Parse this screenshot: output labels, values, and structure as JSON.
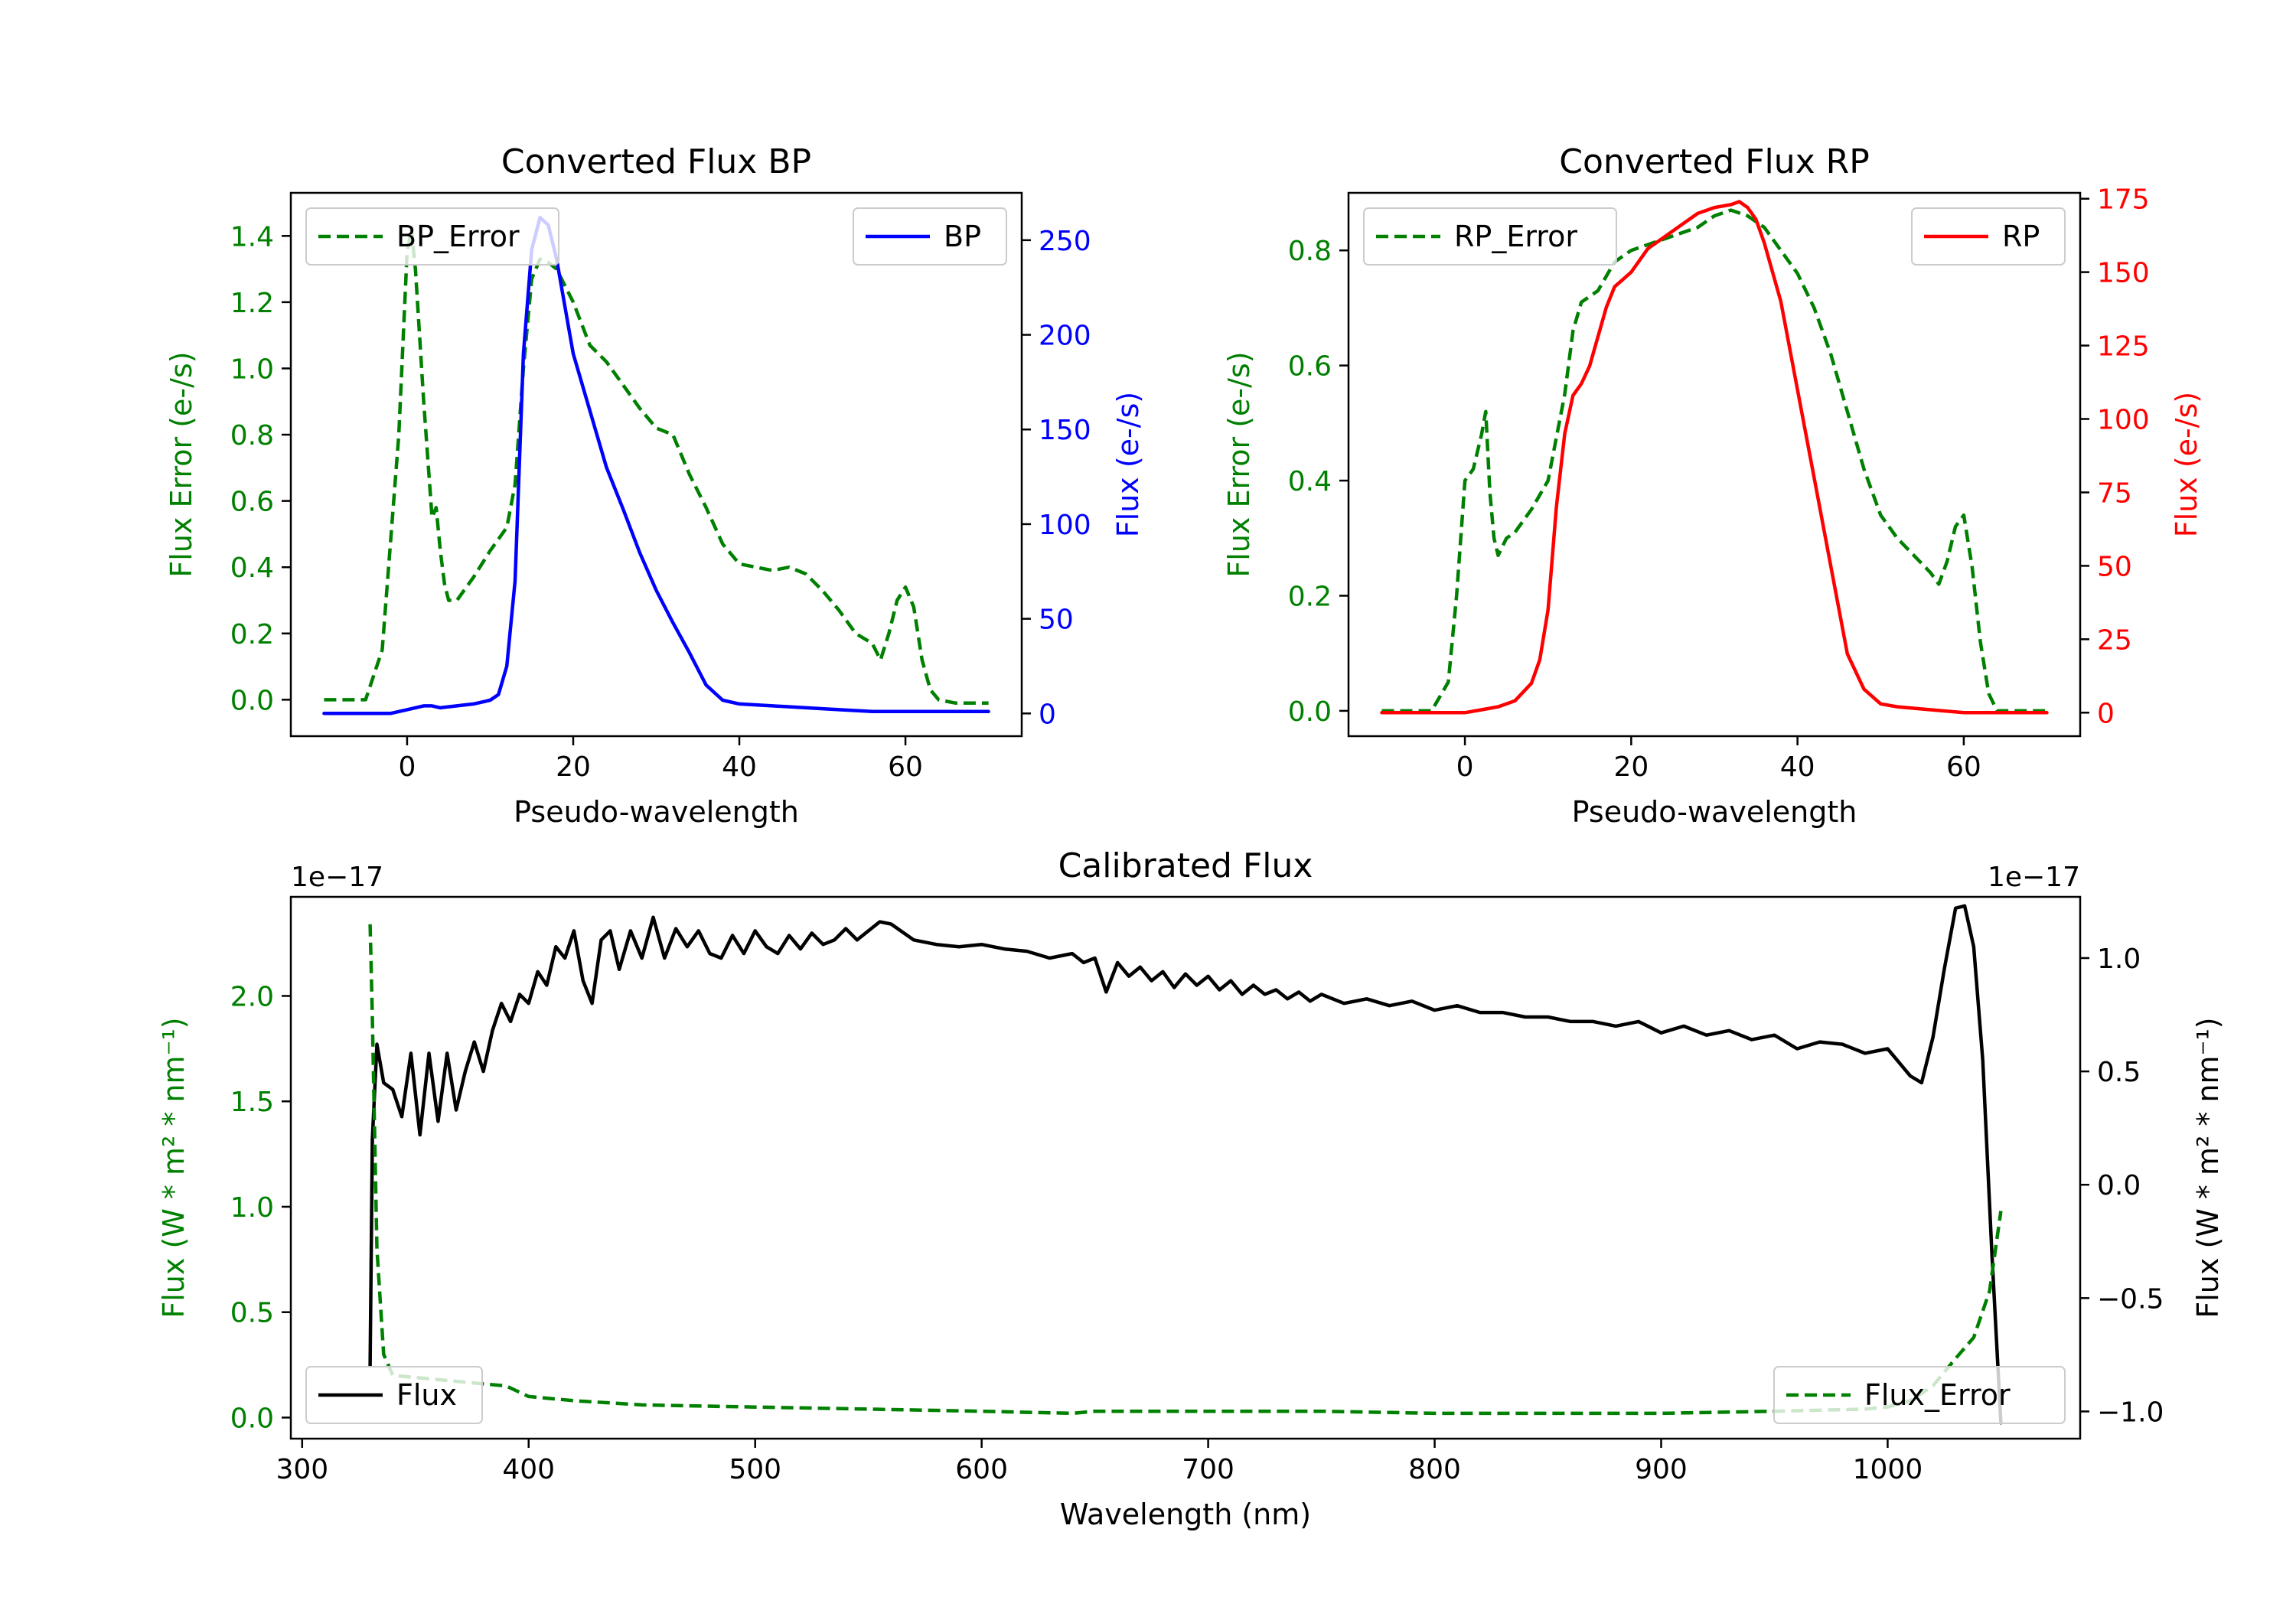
{
  "chart_data": [
    {
      "type": "line",
      "title": "Converted Flux BP",
      "xlabel": "Pseudo-wavelength",
      "ylabel_left": "Flux Error (e-/s)",
      "ylabel_right": "Flux (e-/s)",
      "xlim": [
        -14,
        74
      ],
      "ylim_left": [
        -0.11,
        1.53
      ],
      "ylim_right": [
        -12,
        275
      ],
      "xticks": [
        0,
        20,
        40,
        60
      ],
      "yticks_left": [
        0.0,
        0.2,
        0.4,
        0.6,
        0.8,
        1.0,
        1.2,
        1.4
      ],
      "yticks_right": [
        0,
        50,
        100,
        150,
        200,
        250
      ],
      "legend": [
        {
          "label": "BP_Error",
          "position": "top-left"
        },
        {
          "label": "BP",
          "position": "top-right"
        }
      ],
      "series": [
        {
          "name": "BP_Error",
          "axis": "left",
          "color": "#008000",
          "style": "dashed",
          "x": [
            -10,
            -5,
            -3,
            -1,
            0,
            0.5,
            1,
            2,
            3,
            3.5,
            4,
            4.5,
            5,
            6,
            8,
            10,
            12,
            13,
            14,
            15,
            16,
            17,
            18,
            19,
            20,
            22,
            24,
            26,
            28,
            30,
            32,
            34,
            36,
            38,
            40,
            42,
            44,
            46,
            48,
            50,
            52,
            54,
            56,
            57,
            58,
            59,
            60,
            61,
            62,
            63,
            64,
            66,
            70
          ],
          "y": [
            0.0,
            0.0,
            0.15,
            0.8,
            1.35,
            1.42,
            1.3,
            0.9,
            0.55,
            0.58,
            0.45,
            0.35,
            0.3,
            0.3,
            0.37,
            0.45,
            0.52,
            0.65,
            1.0,
            1.27,
            1.33,
            1.32,
            1.3,
            1.25,
            1.2,
            1.07,
            1.02,
            0.95,
            0.88,
            0.82,
            0.8,
            0.68,
            0.58,
            0.47,
            0.41,
            0.4,
            0.39,
            0.4,
            0.38,
            0.33,
            0.27,
            0.2,
            0.17,
            0.12,
            0.2,
            0.3,
            0.34,
            0.28,
            0.12,
            0.03,
            0.0,
            -0.01,
            -0.01
          ]
        },
        {
          "name": "BP",
          "axis": "right",
          "color": "#0000ff",
          "style": "solid",
          "x": [
            -10,
            -4,
            -2,
            0,
            1,
            2,
            3,
            4,
            6,
            8,
            10,
            11,
            12,
            13,
            14,
            15,
            16,
            17,
            18,
            19,
            20,
            22,
            24,
            26,
            28,
            30,
            32,
            34,
            36,
            38,
            40,
            44,
            48,
            52,
            56,
            60,
            70
          ],
          "y": [
            0,
            0,
            0,
            2,
            3,
            4,
            4,
            3,
            4,
            5,
            7,
            10,
            25,
            70,
            190,
            245,
            262,
            258,
            240,
            215,
            190,
            160,
            130,
            108,
            85,
            65,
            48,
            32,
            15,
            7,
            5,
            4,
            3,
            2,
            1,
            1,
            1
          ]
        }
      ]
    },
    {
      "type": "line",
      "title": "Converted Flux RP",
      "xlabel": "Pseudo-wavelength",
      "ylabel_left": "Flux Error (e-/s)",
      "ylabel_right": "Flux (e-/s)",
      "xlim": [
        -14,
        74
      ],
      "ylim_left": [
        -0.044,
        0.9
      ],
      "ylim_right": [
        -8,
        177
      ],
      "xticks": [
        0,
        20,
        40,
        60
      ],
      "yticks_left": [
        0.0,
        0.2,
        0.4,
        0.6,
        0.8
      ],
      "yticks_right": [
        0,
        25,
        50,
        75,
        100,
        125,
        150,
        175
      ],
      "legend": [
        {
          "label": "RP_Error",
          "position": "top-left"
        },
        {
          "label": "RP",
          "position": "top-right"
        }
      ],
      "series": [
        {
          "name": "RP_Error",
          "axis": "left",
          "color": "#008000",
          "style": "dashed",
          "x": [
            -10,
            -4,
            -2,
            -1,
            0,
            1,
            2,
            2.5,
            3,
            3.5,
            4,
            5,
            6,
            8,
            10,
            12,
            13,
            14,
            16,
            18,
            20,
            22,
            24,
            26,
            28,
            30,
            32,
            34,
            36,
            38,
            40,
            42,
            44,
            46,
            48,
            50,
            52,
            54,
            56,
            57,
            58,
            59,
            60,
            61,
            62,
            63,
            64,
            66,
            70
          ],
          "y": [
            0.0,
            0.0,
            0.05,
            0.2,
            0.4,
            0.42,
            0.48,
            0.52,
            0.38,
            0.3,
            0.27,
            0.3,
            0.31,
            0.35,
            0.4,
            0.55,
            0.66,
            0.71,
            0.73,
            0.78,
            0.8,
            0.81,
            0.82,
            0.83,
            0.84,
            0.86,
            0.87,
            0.86,
            0.84,
            0.8,
            0.76,
            0.7,
            0.62,
            0.52,
            0.42,
            0.34,
            0.3,
            0.27,
            0.24,
            0.22,
            0.26,
            0.32,
            0.34,
            0.25,
            0.12,
            0.03,
            0.0,
            0.0,
            0.0
          ]
        },
        {
          "name": "RP",
          "axis": "right",
          "color": "#ff0000",
          "style": "solid",
          "x": [
            -10,
            -2,
            0,
            2,
            4,
            6,
            8,
            9,
            10,
            11,
            12,
            13,
            14,
            15,
            16,
            17,
            18,
            20,
            22,
            24,
            26,
            28,
            30,
            32,
            33,
            34,
            35,
            36,
            38,
            40,
            42,
            44,
            46,
            48,
            50,
            52,
            56,
            60,
            64,
            70
          ],
          "y": [
            0,
            0,
            0,
            1,
            2,
            4,
            10,
            18,
            35,
            70,
            95,
            108,
            112,
            118,
            128,
            138,
            145,
            150,
            158,
            162,
            166,
            170,
            172,
            173,
            174,
            172,
            168,
            160,
            140,
            110,
            80,
            50,
            20,
            8,
            3,
            2,
            1,
            0,
            0,
            0
          ]
        }
      ]
    },
    {
      "type": "line",
      "title": "Calibrated Flux",
      "xlabel": "Wavelength (nm)",
      "ylabel_left": "Flux (W * m² * nm⁻¹)",
      "ylabel_right": "Flux (W * m² * nm⁻¹)",
      "offset_left": "1e−17",
      "offset_right": "1e−17",
      "xlim": [
        295,
        1085
      ],
      "ylim_left": [
        -0.1,
        2.47
      ],
      "ylim_right": [
        -1.12,
        1.27
      ],
      "xticks": [
        300,
        400,
        500,
        600,
        700,
        800,
        900,
        1000
      ],
      "yticks_left": [
        0.0,
        0.5,
        1.0,
        1.5,
        2.0
      ],
      "yticks_left_labels": [
        "0.0",
        "0.5",
        "1.0",
        "1.5",
        "2.0"
      ],
      "yticks_right": [
        1.0,
        0.5,
        0.0,
        -0.5,
        -1.0
      ],
      "yticks_right_labels": [
        "1.0",
        "0.5",
        "0.0",
        "−0.5",
        "−1.0"
      ],
      "legend": [
        {
          "label": "Flux",
          "position": "lower-left"
        },
        {
          "label": "Flux_Error",
          "position": "lower-right"
        }
      ],
      "series": [
        {
          "name": "Flux",
          "axis": "right",
          "color": "#000000",
          "style": "solid",
          "x": [
            330,
            331,
            333,
            336,
            340,
            344,
            348,
            352,
            356,
            360,
            364,
            368,
            372,
            376,
            380,
            384,
            388,
            392,
            396,
            400,
            404,
            408,
            412,
            416,
            420,
            424,
            428,
            432,
            436,
            440,
            445,
            450,
            455,
            460,
            465,
            470,
            475,
            480,
            485,
            490,
            495,
            500,
            505,
            510,
            515,
            520,
            525,
            530,
            535,
            540,
            545,
            550,
            555,
            560,
            570,
            580,
            590,
            600,
            610,
            620,
            630,
            640,
            645,
            650,
            655,
            660,
            665,
            670,
            675,
            680,
            685,
            690,
            695,
            700,
            705,
            710,
            715,
            720,
            725,
            730,
            735,
            740,
            745,
            750,
            760,
            770,
            780,
            790,
            800,
            810,
            820,
            830,
            840,
            850,
            860,
            870,
            880,
            890,
            900,
            910,
            920,
            930,
            940,
            950,
            960,
            970,
            980,
            990,
            1000,
            1010,
            1015,
            1020,
            1025,
            1030,
            1034,
            1038,
            1042,
            1046,
            1050
          ],
          "y": [
            -0.8,
            0.2,
            0.62,
            0.45,
            0.42,
            0.3,
            0.58,
            0.22,
            0.58,
            0.28,
            0.58,
            0.33,
            0.5,
            0.63,
            0.5,
            0.68,
            0.8,
            0.72,
            0.84,
            0.8,
            0.94,
            0.88,
            1.05,
            1.0,
            1.12,
            0.9,
            0.8,
            1.08,
            1.12,
            0.95,
            1.12,
            1.0,
            1.18,
            1.0,
            1.13,
            1.05,
            1.12,
            1.02,
            1.0,
            1.1,
            1.02,
            1.12,
            1.05,
            1.02,
            1.1,
            1.04,
            1.11,
            1.06,
            1.08,
            1.13,
            1.08,
            1.12,
            1.16,
            1.15,
            1.08,
            1.06,
            1.05,
            1.06,
            1.04,
            1.03,
            1.0,
            1.02,
            0.98,
            1.0,
            0.85,
            0.98,
            0.92,
            0.96,
            0.9,
            0.94,
            0.87,
            0.93,
            0.88,
            0.92,
            0.86,
            0.9,
            0.84,
            0.88,
            0.84,
            0.86,
            0.82,
            0.85,
            0.81,
            0.84,
            0.8,
            0.82,
            0.79,
            0.81,
            0.77,
            0.79,
            0.76,
            0.76,
            0.74,
            0.74,
            0.72,
            0.72,
            0.7,
            0.72,
            0.67,
            0.7,
            0.66,
            0.68,
            0.64,
            0.66,
            0.6,
            0.63,
            0.62,
            0.58,
            0.6,
            0.48,
            0.45,
            0.65,
            0.95,
            1.22,
            1.23,
            1.05,
            0.55,
            -0.3,
            -1.05
          ]
        },
        {
          "name": "Flux_Error",
          "axis": "left",
          "color": "#008000",
          "style": "dashed",
          "x": [
            330,
            331,
            333,
            336,
            340,
            350,
            360,
            370,
            380,
            390,
            400,
            420,
            450,
            500,
            550,
            600,
            640,
            650,
            700,
            750,
            800,
            850,
            900,
            950,
            990,
            1000,
            1010,
            1020,
            1030,
            1038,
            1045,
            1050
          ],
          "y": [
            2.34,
            1.9,
            0.8,
            0.3,
            0.2,
            0.19,
            0.18,
            0.17,
            0.16,
            0.15,
            0.1,
            0.08,
            0.06,
            0.05,
            0.04,
            0.03,
            0.02,
            0.03,
            0.03,
            0.03,
            0.02,
            0.02,
            0.02,
            0.03,
            0.04,
            0.05,
            0.08,
            0.15,
            0.28,
            0.38,
            0.6,
            0.98
          ]
        }
      ]
    }
  ]
}
